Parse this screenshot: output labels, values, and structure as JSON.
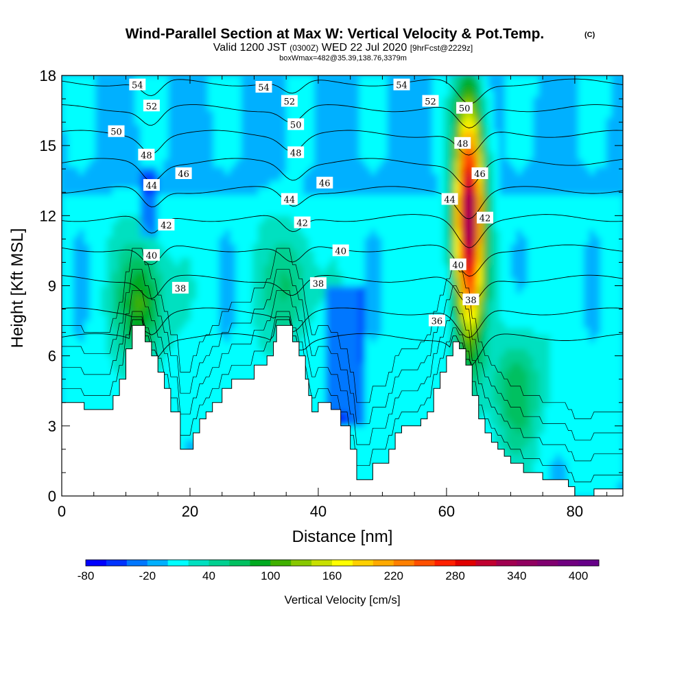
{
  "chart_data": {
    "type": "heatmap",
    "title": "Wind-Parallel Section at Max W: Vertical Velocity & Pot.Temp.",
    "title_mark": "(C)",
    "subtitle_parts": [
      "Valid 1200 JST",
      "(0300Z)",
      "WED 22 Jul 2020",
      "[9hrFcst@2229z]"
    ],
    "subtitle2": "boxWmax=482@35.39,138.76,3379m",
    "xlabel": "Distance [nm]",
    "ylabel": "Height [Kft MSL]",
    "xlim": [
      0,
      87.5
    ],
    "ylim": [
      0,
      18
    ],
    "x_ticks": [
      0,
      20,
      40,
      60,
      80
    ],
    "y_ticks": [
      0,
      3,
      6,
      9,
      12,
      15,
      18
    ],
    "grid": false,
    "colorbar": {
      "label": "Vertical Velocity [cm/s]",
      "min": -80,
      "max": 420,
      "step": 20,
      "ticks": [
        -80,
        -20,
        40,
        100,
        160,
        220,
        280,
        340,
        400
      ],
      "colors": [
        "#0000ff",
        "#0033ff",
        "#0077ff",
        "#00b0ff",
        "#00ffff",
        "#00e0c0",
        "#00d090",
        "#00c060",
        "#00aa20",
        "#40b000",
        "#88c800",
        "#c8e000",
        "#ffff00",
        "#ffd000",
        "#ffaa00",
        "#ff8000",
        "#ff5000",
        "#ff2000",
        "#e00000",
        "#c00030",
        "#a00050",
        "#900060",
        "#800070",
        "#700080",
        "#660088"
      ]
    },
    "terrain_kft": [
      [
        0,
        4.0
      ],
      [
        3.5,
        4.0
      ],
      [
        3.5,
        3.7
      ],
      [
        8,
        3.7
      ],
      [
        8,
        4.3
      ],
      [
        9,
        4.3
      ],
      [
        9,
        5.0
      ],
      [
        10,
        5.0
      ],
      [
        10,
        6.3
      ],
      [
        11,
        6.3
      ],
      [
        11,
        7.3
      ],
      [
        13,
        7.3
      ],
      [
        13,
        6.6
      ],
      [
        14,
        6.6
      ],
      [
        14,
        6.0
      ],
      [
        15,
        6.0
      ],
      [
        15,
        5.3
      ],
      [
        16,
        5.3
      ],
      [
        16,
        4.6
      ],
      [
        17,
        4.6
      ],
      [
        17,
        3.6
      ],
      [
        18.5,
        3.6
      ],
      [
        18.5,
        2.0
      ],
      [
        20.5,
        2.0
      ],
      [
        20.5,
        2.7
      ],
      [
        21.5,
        2.7
      ],
      [
        21.5,
        3.3
      ],
      [
        22.5,
        3.3
      ],
      [
        22.5,
        3.6
      ],
      [
        23.5,
        3.6
      ],
      [
        23.5,
        4.0
      ],
      [
        25,
        4.0
      ],
      [
        25,
        4.6
      ],
      [
        26.5,
        4.6
      ],
      [
        26.5,
        5.0
      ],
      [
        30,
        5.0
      ],
      [
        30,
        5.6
      ],
      [
        32,
        5.6
      ],
      [
        32,
        6.0
      ],
      [
        33,
        6.0
      ],
      [
        33,
        6.6
      ],
      [
        33.5,
        6.6
      ],
      [
        33.5,
        7.3
      ],
      [
        36,
        7.3
      ],
      [
        36,
        6.6
      ],
      [
        37,
        6.6
      ],
      [
        37,
        6.0
      ],
      [
        38,
        6.0
      ],
      [
        38,
        5.0
      ],
      [
        38.5,
        5.0
      ],
      [
        38.5,
        4.3
      ],
      [
        39,
        4.3
      ],
      [
        39,
        3.6
      ],
      [
        40,
        3.6
      ],
      [
        40,
        4.0
      ],
      [
        42,
        4.0
      ],
      [
        42,
        3.7
      ],
      [
        43.5,
        3.7
      ],
      [
        43.5,
        3.0
      ],
      [
        45,
        3.0
      ],
      [
        45,
        2.0
      ],
      [
        46,
        2.0
      ],
      [
        46,
        0.7
      ],
      [
        48.5,
        0.7
      ],
      [
        48.5,
        1.4
      ],
      [
        51,
        1.4
      ],
      [
        51,
        2.0
      ],
      [
        52,
        2.0
      ],
      [
        52,
        2.7
      ],
      [
        53,
        2.7
      ],
      [
        53,
        3.0
      ],
      [
        56,
        3.0
      ],
      [
        56,
        3.3
      ],
      [
        57,
        3.3
      ],
      [
        57,
        3.6
      ],
      [
        58,
        3.6
      ],
      [
        58,
        4.6
      ],
      [
        59,
        4.6
      ],
      [
        59,
        5.3
      ],
      [
        60,
        5.3
      ],
      [
        60,
        6.0
      ],
      [
        61,
        6.0
      ],
      [
        61,
        6.6
      ],
      [
        62,
        6.6
      ],
      [
        62,
        6.3
      ],
      [
        63,
        6.3
      ],
      [
        63,
        5.6
      ],
      [
        64,
        5.6
      ],
      [
        64,
        4.3
      ],
      [
        65,
        4.3
      ],
      [
        65,
        3.3
      ],
      [
        66,
        3.3
      ],
      [
        66,
        2.7
      ],
      [
        67,
        2.7
      ],
      [
        67,
        2.3
      ],
      [
        68,
        2.3
      ],
      [
        68,
        2.0
      ],
      [
        69,
        2.0
      ],
      [
        69,
        1.7
      ],
      [
        70,
        1.7
      ],
      [
        70,
        1.4
      ],
      [
        72,
        1.4
      ],
      [
        72,
        1.0
      ],
      [
        75,
        1.0
      ],
      [
        75,
        0.7
      ],
      [
        79,
        0.7
      ],
      [
        79,
        0.4
      ],
      [
        80,
        0.4
      ],
      [
        80,
        0.0
      ],
      [
        83,
        0.0
      ],
      [
        83,
        0.3
      ],
      [
        87.5,
        0.3
      ]
    ],
    "updraft_cores": [
      {
        "x": 63.5,
        "z": 12.0,
        "peak": 340
      },
      {
        "x": 12.5,
        "z": 8.3,
        "peak": 100
      },
      {
        "x": 35.5,
        "z": 9.0,
        "peak": 60
      },
      {
        "x": 71.0,
        "z": 4.5,
        "peak": 70
      }
    ],
    "theta_contours": [
      {
        "value": 36,
        "label": "36"
      },
      {
        "value": 38,
        "label": "38"
      },
      {
        "value": 40,
        "label": "40"
      },
      {
        "value": 42,
        "label": "42"
      },
      {
        "value": 44,
        "label": "44"
      },
      {
        "value": 46,
        "label": "46"
      },
      {
        "value": 48,
        "label": "48"
      },
      {
        "value": 50,
        "label": "50"
      },
      {
        "value": 52,
        "label": "52"
      },
      {
        "value": 54,
        "label": "54"
      }
    ],
    "contour_labels": [
      {
        "text": "54",
        "x": 11.8,
        "z": 17.6
      },
      {
        "text": "54",
        "x": 31.5,
        "z": 17.5
      },
      {
        "text": "54",
        "x": 53.0,
        "z": 17.6
      },
      {
        "text": "52",
        "x": 14.0,
        "z": 16.7
      },
      {
        "text": "52",
        "x": 35.5,
        "z": 16.9
      },
      {
        "text": "52",
        "x": 57.5,
        "z": 16.9
      },
      {
        "text": "50",
        "x": 8.5,
        "z": 15.6
      },
      {
        "text": "50",
        "x": 36.5,
        "z": 15.9
      },
      {
        "text": "50",
        "x": 62.8,
        "z": 16.6
      },
      {
        "text": "48",
        "x": 13.2,
        "z": 14.6
      },
      {
        "text": "48",
        "x": 36.5,
        "z": 14.7
      },
      {
        "text": "48",
        "x": 62.5,
        "z": 15.1
      },
      {
        "text": "46",
        "x": 19.0,
        "z": 13.8
      },
      {
        "text": "46",
        "x": 41.0,
        "z": 13.4
      },
      {
        "text": "46",
        "x": 65.2,
        "z": 13.8
      },
      {
        "text": "44",
        "x": 14.0,
        "z": 13.3
      },
      {
        "text": "44",
        "x": 35.5,
        "z": 12.7
      },
      {
        "text": "44",
        "x": 60.5,
        "z": 12.7
      },
      {
        "text": "42",
        "x": 16.3,
        "z": 11.6
      },
      {
        "text": "42",
        "x": 37.5,
        "z": 11.7
      },
      {
        "text": "42",
        "x": 66.0,
        "z": 11.9
      },
      {
        "text": "40",
        "x": 14.0,
        "z": 10.3
      },
      {
        "text": "40",
        "x": 43.5,
        "z": 10.5
      },
      {
        "text": "40",
        "x": 61.8,
        "z": 9.9
      },
      {
        "text": "38",
        "x": 18.5,
        "z": 8.9
      },
      {
        "text": "38",
        "x": 40.0,
        "z": 9.1
      },
      {
        "text": "38",
        "x": 63.8,
        "z": 8.4
      },
      {
        "text": "36",
        "x": 58.5,
        "z": 7.5
      }
    ]
  }
}
